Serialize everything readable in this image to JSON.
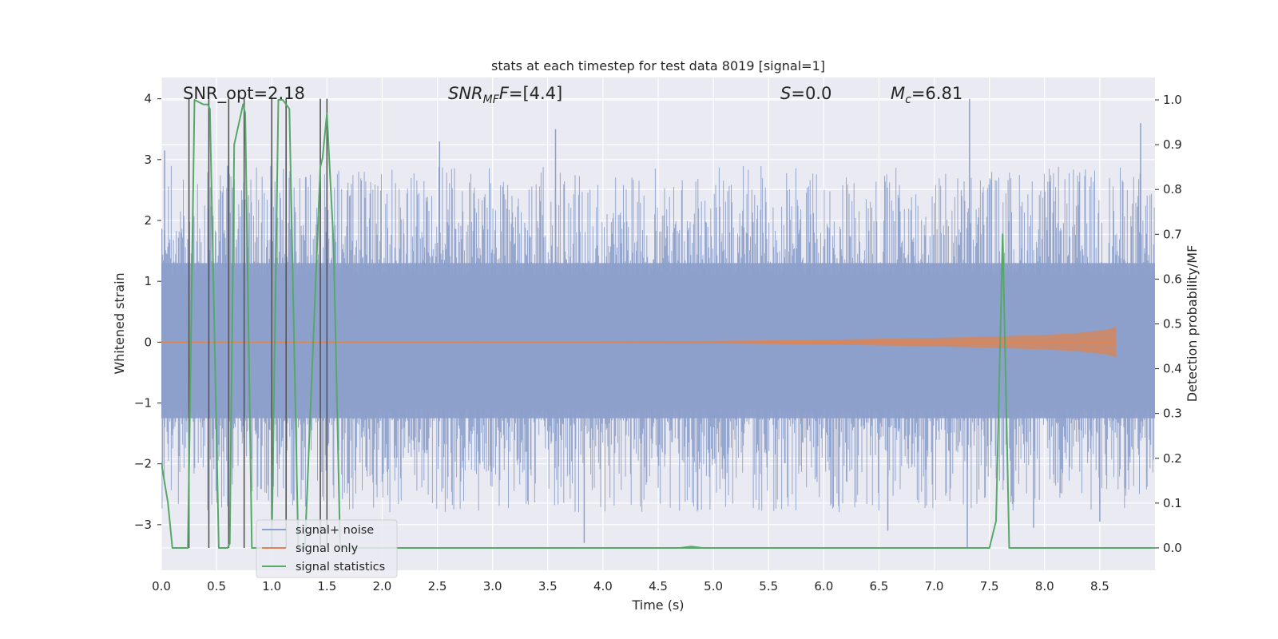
{
  "chart_data": {
    "type": "line",
    "title": "stats at each timestep for test data 8019 [signal=1]",
    "xlabel": "Time (s)",
    "ylabel": "Whitened strain",
    "y2label": "Detection probability/MF",
    "xlim": [
      0,
      9.0
    ],
    "ylim": [
      -3.75,
      4.35
    ],
    "y2lim": [
      -0.05,
      1.05
    ],
    "x_ticks": [
      "0.0",
      "0.5",
      "1.0",
      "1.5",
      "2.0",
      "2.5",
      "3.0",
      "3.5",
      "4.0",
      "4.5",
      "5.0",
      "5.5",
      "6.0",
      "6.5",
      "7.0",
      "7.5",
      "8.0",
      "8.5"
    ],
    "y_ticks": [
      "−3",
      "−2",
      "−1",
      "0",
      "1",
      "2",
      "3",
      "4"
    ],
    "y2_ticks": [
      "0.0",
      "0.1",
      "0.2",
      "0.3",
      "0.4",
      "0.5",
      "0.6",
      "0.7",
      "0.8",
      "0.9",
      "1.0"
    ],
    "annotations": {
      "snr_opt": {
        "label": "SNR_opt=2.18",
        "x": 0.2
      },
      "snr_mf": {
        "label": "SNR",
        "sub": "MF",
        "tail": "=[4.4]",
        "x": 2.6
      },
      "s_stat": {
        "label": "S",
        "tail": "=0.0",
        "x": 5.6
      },
      "mc": {
        "label": "M",
        "sub": "c",
        "tail": "=6.81",
        "x": 6.6
      }
    },
    "legend": {
      "placement": "lower-left",
      "entries": [
        "signal+ noise",
        "signal only",
        "signal statistics"
      ]
    },
    "colors": {
      "noise": "#8da0cb",
      "signal": "#dd8452",
      "stat": "#55a868",
      "vlines": "#555555",
      "background": "#eaeaf2",
      "grid": "#ffffff"
    },
    "series": [
      {
        "name": "signal+ noise",
        "kind": "noise-band",
        "seed": 8019,
        "x_range": [
          0,
          9.0
        ],
        "core_range": [
          -1.25,
          1.3
        ],
        "outer_range": [
          -2.0,
          2.0
        ],
        "spikes": [
          {
            "x": 0.03,
            "y": 3.15
          },
          {
            "x": 0.6,
            "y": 2.9
          },
          {
            "x": 2.52,
            "y": 3.3
          },
          {
            "x": 3.57,
            "y": 3.5
          },
          {
            "x": 7.32,
            "y": 4.0
          },
          {
            "x": 8.87,
            "y": 3.6
          },
          {
            "x": 3.83,
            "y": -3.3
          },
          {
            "x": 6.58,
            "y": -3.1
          },
          {
            "x": 7.3,
            "y": -3.4
          },
          {
            "x": 7.9,
            "y": -3.05
          },
          {
            "x": 8.5,
            "y": -2.95
          },
          {
            "x": 1.2,
            "y": -2.6
          }
        ]
      },
      {
        "name": "signal only",
        "kind": "chirp",
        "x": [
          0,
          4.0,
          5.0,
          6.0,
          7.0,
          7.5,
          8.0,
          8.3,
          8.55,
          8.65
        ],
        "amplitude": [
          0.005,
          0.01,
          0.02,
          0.04,
          0.07,
          0.09,
          0.12,
          0.15,
          0.2,
          0.25
        ]
      },
      {
        "name": "signal statistics",
        "axis": "right",
        "x": [
          0.0,
          0.06,
          0.1,
          0.24,
          0.3,
          0.38,
          0.42,
          0.44,
          0.52,
          0.6,
          0.62,
          0.66,
          0.74,
          0.76,
          0.82,
          0.88,
          1.0,
          1.06,
          1.1,
          1.16,
          1.24,
          1.3,
          1.44,
          1.46,
          1.5,
          1.56,
          1.62,
          1.74,
          7.5,
          7.56,
          7.62,
          7.68,
          7.72,
          8.0,
          9.0
        ],
        "values": [
          0.19,
          0.1,
          0.0,
          0.0,
          1.0,
          0.99,
          0.99,
          0.98,
          0.0,
          0.0,
          0.01,
          0.9,
          0.99,
          0.97,
          0.0,
          0.0,
          0.0,
          1.0,
          1.0,
          0.98,
          0.0,
          0.0,
          0.85,
          0.87,
          0.97,
          0.68,
          0.0,
          0.0,
          0.0,
          0.06,
          0.7,
          0.0,
          0.0,
          0.0,
          0.0
        ],
        "extra": [
          {
            "x": 4.7,
            "y": 0.0
          },
          {
            "x": 4.8,
            "y": 0.003
          },
          {
            "x": 4.9,
            "y": 0.0
          }
        ]
      }
    ],
    "vertical_lines": [
      0.25,
      0.43,
      0.61,
      0.75,
      1.0,
      1.13,
      1.44,
      1.5
    ]
  }
}
